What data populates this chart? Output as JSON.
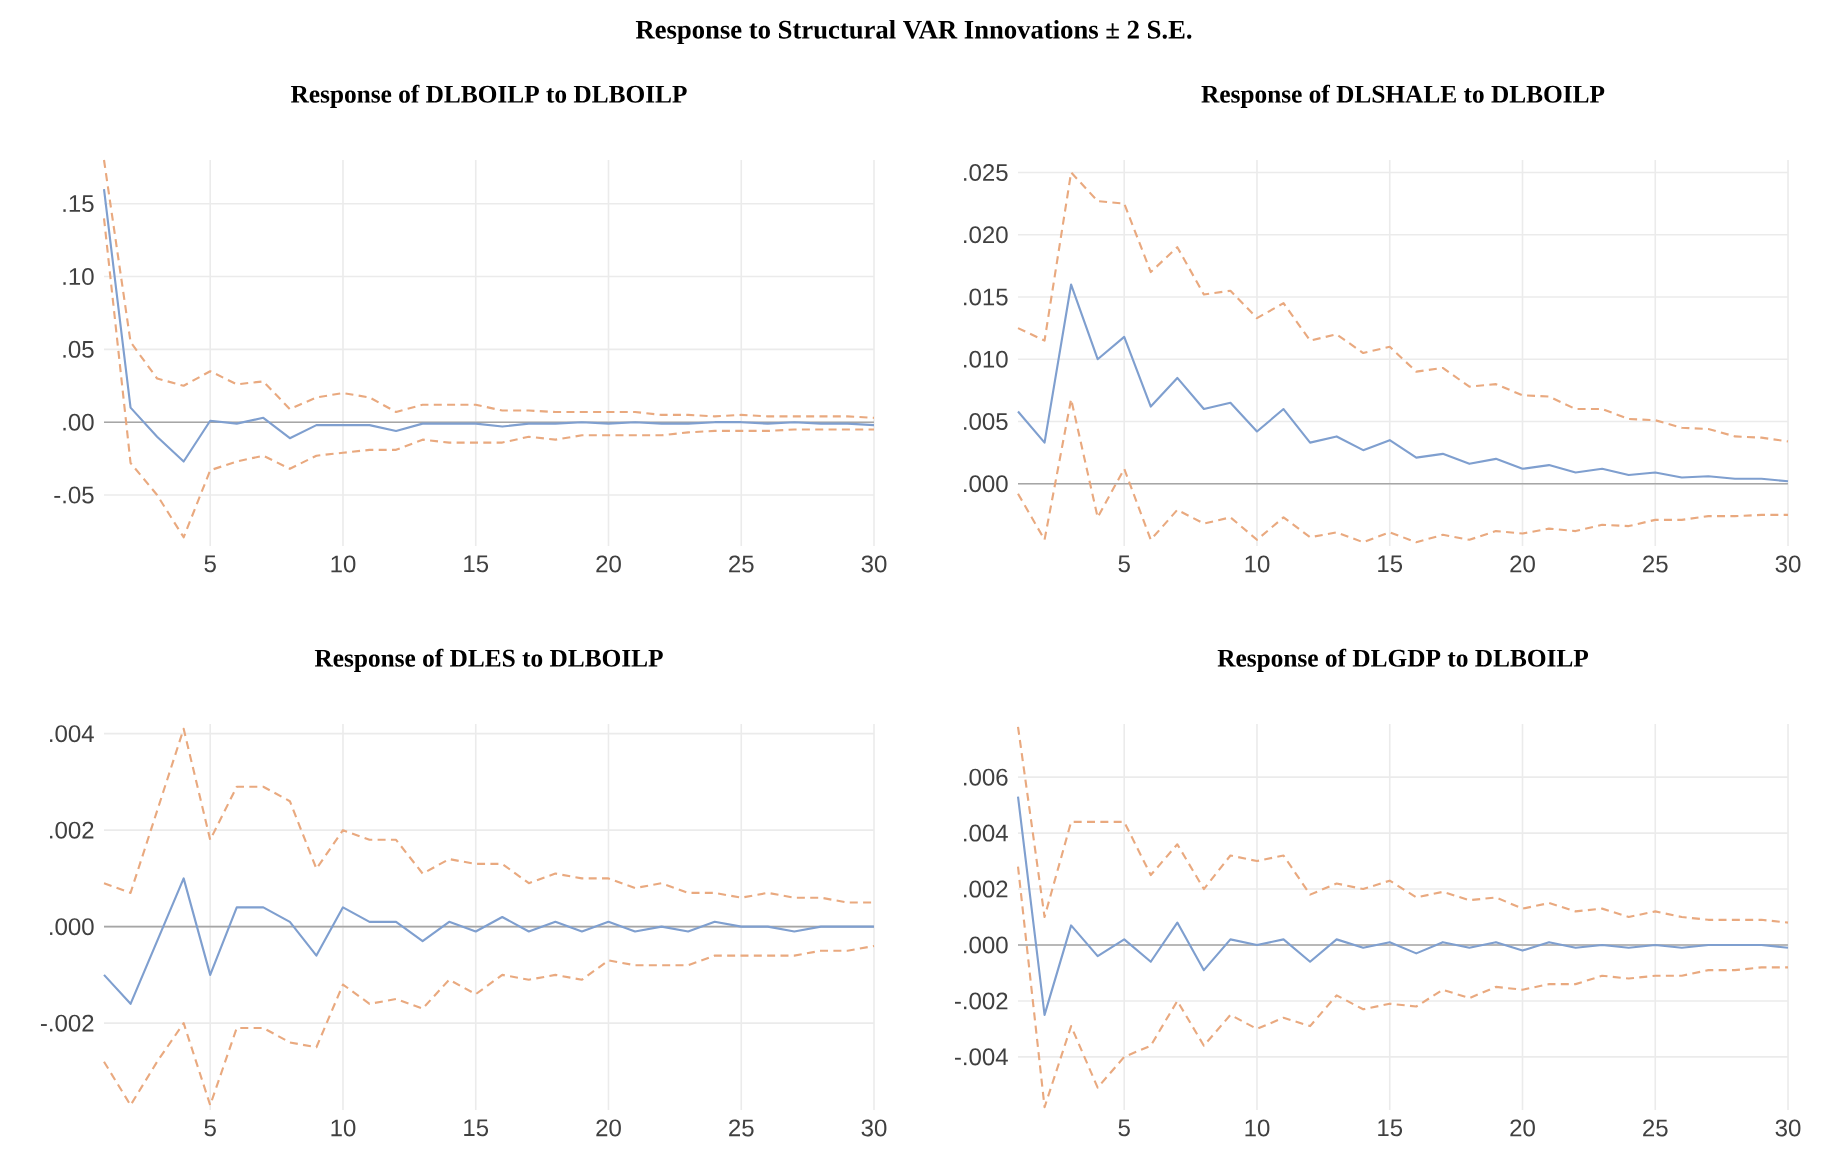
{
  "chart_data": [
    {
      "type": "line",
      "title": "Response of DLBOILP to DLBOILP",
      "annotations": [
        "Response to Structural VAR Innovations ± 2 S.E."
      ],
      "x": [
        1,
        2,
        3,
        4,
        5,
        6,
        7,
        8,
        9,
        10,
        11,
        12,
        13,
        14,
        15,
        16,
        17,
        18,
        19,
        20,
        21,
        22,
        23,
        24,
        25,
        26,
        27,
        28,
        29,
        30
      ],
      "xlim": [
        1,
        30
      ],
      "xticks": [
        5,
        10,
        15,
        20,
        25,
        30
      ],
      "ylim": [
        -0.085,
        0.18
      ],
      "yticks": [
        {
          "value": -0.05,
          "label": "-.05"
        },
        {
          "value": 0,
          "label": ".00"
        },
        {
          "value": 0.05,
          "label": ".05"
        },
        {
          "value": 0.1,
          "label": ".10"
        },
        {
          "value": 0.15,
          "label": ".15"
        }
      ],
      "grid": true,
      "ref_lines": [
        {
          "axis": "y",
          "value": 0,
          "color": "#a6a6a6"
        }
      ],
      "series": [
        {
          "color": "#7f9fcf",
          "line_style": "solid",
          "values": [
            0.16,
            0.01,
            -0.01,
            -0.027,
            0.001,
            -0.001,
            0.003,
            -0.011,
            -0.002,
            -0.002,
            -0.002,
            -0.006,
            -0.001,
            -0.001,
            -0.001,
            -0.003,
            -0.001,
            -0.001,
            0,
            -0.001,
            0,
            -0.001,
            -0.001,
            0,
            0,
            -0.001,
            0,
            -0.001,
            -0.001,
            -0.002
          ]
        },
        {
          "color": "#e9a97f",
          "line_style": "dashed",
          "values": [
            0.18,
            0.055,
            0.03,
            0.025,
            0.035,
            0.026,
            0.028,
            0.009,
            0.017,
            0.02,
            0.017,
            0.007,
            0.012,
            0.012,
            0.012,
            0.008,
            0.008,
            0.007,
            0.007,
            0.007,
            0.007,
            0.005,
            0.005,
            0.004,
            0.005,
            0.004,
            0.004,
            0.004,
            0.004,
            0.003
          ]
        },
        {
          "color": "#e9a97f",
          "line_style": "dashed",
          "values": [
            0.14,
            -0.028,
            -0.05,
            -0.079,
            -0.033,
            -0.027,
            -0.023,
            -0.032,
            -0.023,
            -0.021,
            -0.019,
            -0.019,
            -0.012,
            -0.014,
            -0.014,
            -0.014,
            -0.01,
            -0.012,
            -0.009,
            -0.009,
            -0.009,
            -0.009,
            -0.007,
            -0.006,
            -0.006,
            -0.006,
            -0.005,
            -0.005,
            -0.005,
            -0.005
          ]
        }
      ]
    },
    {
      "type": "line",
      "title": "Response of DLSHALE to DLBOILP",
      "x": [
        1,
        2,
        3,
        4,
        5,
        6,
        7,
        8,
        9,
        10,
        11,
        12,
        13,
        14,
        15,
        16,
        17,
        18,
        19,
        20,
        21,
        22,
        23,
        24,
        25,
        26,
        27,
        28,
        29,
        30
      ],
      "xlim": [
        1,
        30
      ],
      "xticks": [
        5,
        10,
        15,
        20,
        25,
        30
      ],
      "ylim": [
        -0.005,
        0.026
      ],
      "yticks": [
        {
          "value": 0,
          "label": ".000"
        },
        {
          "value": 0.005,
          "label": ".005"
        },
        {
          "value": 0.01,
          "label": ".010"
        },
        {
          "value": 0.015,
          "label": ".015"
        },
        {
          "value": 0.02,
          "label": ".020"
        },
        {
          "value": 0.025,
          "label": ".025"
        }
      ],
      "grid": true,
      "ref_lines": [
        {
          "axis": "y",
          "value": 0,
          "color": "#a6a6a6"
        }
      ],
      "series": [
        {
          "color": "#7f9fcf",
          "line_style": "solid",
          "values": [
            0.0058,
            0.0033,
            0.016,
            0.01,
            0.0118,
            0.0062,
            0.0085,
            0.006,
            0.0065,
            0.0042,
            0.006,
            0.0033,
            0.0038,
            0.0027,
            0.0035,
            0.0021,
            0.0024,
            0.0016,
            0.002,
            0.0012,
            0.0015,
            0.0009,
            0.0012,
            0.0007,
            0.0009,
            0.0005,
            0.0006,
            0.0004,
            0.0004,
            0.0002
          ]
        },
        {
          "color": "#e9a97f",
          "line_style": "dashed",
          "values": [
            0.0125,
            0.0115,
            0.025,
            0.0227,
            0.0225,
            0.017,
            0.019,
            0.0152,
            0.0155,
            0.0133,
            0.0145,
            0.0115,
            0.012,
            0.0105,
            0.011,
            0.009,
            0.0093,
            0.0078,
            0.008,
            0.0071,
            0.007,
            0.006,
            0.006,
            0.0052,
            0.0051,
            0.0045,
            0.0044,
            0.0038,
            0.0037,
            0.0034
          ]
        },
        {
          "color": "#e9a97f",
          "line_style": "dashed",
          "values": [
            -0.0008,
            -0.0045,
            0.0068,
            -0.0027,
            0.0012,
            -0.0045,
            -0.0021,
            -0.0032,
            -0.0027,
            -0.0045,
            -0.0027,
            -0.0043,
            -0.0039,
            -0.0047,
            -0.0039,
            -0.0047,
            -0.0041,
            -0.0045,
            -0.0038,
            -0.004,
            -0.0036,
            -0.0038,
            -0.0033,
            -0.0034,
            -0.0029,
            -0.0029,
            -0.0026,
            -0.0026,
            -0.0025,
            -0.0025
          ]
        }
      ]
    },
    {
      "type": "line",
      "title": "Response of DLES to DLBOILP",
      "x": [
        1,
        2,
        3,
        4,
        5,
        6,
        7,
        8,
        9,
        10,
        11,
        12,
        13,
        14,
        15,
        16,
        17,
        18,
        19,
        20,
        21,
        22,
        23,
        24,
        25,
        26,
        27,
        28,
        29,
        30
      ],
      "xlim": [
        1,
        30
      ],
      "xticks": [
        5,
        10,
        15,
        20,
        25,
        30
      ],
      "ylim": [
        -0.0038,
        0.0042
      ],
      "yticks": [
        {
          "value": -0.002,
          "label": "-.002"
        },
        {
          "value": 0,
          "label": ".000"
        },
        {
          "value": 0.002,
          "label": ".002"
        },
        {
          "value": 0.004,
          "label": ".004"
        }
      ],
      "grid": true,
      "ref_lines": [
        {
          "axis": "y",
          "value": 0,
          "color": "#a6a6a6"
        }
      ],
      "series": [
        {
          "color": "#7f9fcf",
          "line_style": "solid",
          "values": [
            -0.001,
            -0.0016,
            -0.0003,
            0.001,
            -0.001,
            0.0004,
            0.0004,
            0.0001,
            -0.0006,
            0.0004,
            0.0001,
            0.0001,
            -0.0003,
            0.0001,
            -0.0001,
            0.0002,
            -0.0001,
            0.0001,
            -0.0001,
            0.0001,
            -0.0001,
            0,
            -0.0001,
            0.0001,
            0,
            0,
            -0.0001,
            0,
            0,
            0
          ]
        },
        {
          "color": "#e9a97f",
          "line_style": "dashed",
          "values": [
            0.0009,
            0.0007,
            0.0024,
            0.0041,
            0.0018,
            0.0029,
            0.0029,
            0.0026,
            0.0012,
            0.002,
            0.0018,
            0.0018,
            0.0011,
            0.0014,
            0.0013,
            0.0013,
            0.0009,
            0.0011,
            0.001,
            0.001,
            0.0008,
            0.0009,
            0.0007,
            0.0007,
            0.0006,
            0.0007,
            0.0006,
            0.0006,
            0.0005,
            0.0005
          ]
        },
        {
          "color": "#e9a97f",
          "line_style": "dashed",
          "values": [
            -0.0028,
            -0.0037,
            -0.0028,
            -0.002,
            -0.0037,
            -0.0021,
            -0.0021,
            -0.0024,
            -0.0025,
            -0.0012,
            -0.0016,
            -0.0015,
            -0.0017,
            -0.0011,
            -0.0014,
            -0.001,
            -0.0011,
            -0.001,
            -0.0011,
            -0.0007,
            -0.0008,
            -0.0008,
            -0.0008,
            -0.0006,
            -0.0006,
            -0.0006,
            -0.0006,
            -0.0005,
            -0.0005,
            -0.0004
          ]
        }
      ]
    },
    {
      "type": "line",
      "title": "Response of DLGDP to DLBOILP",
      "x": [
        1,
        2,
        3,
        4,
        5,
        6,
        7,
        8,
        9,
        10,
        11,
        12,
        13,
        14,
        15,
        16,
        17,
        18,
        19,
        20,
        21,
        22,
        23,
        24,
        25,
        26,
        27,
        28,
        29,
        30
      ],
      "xlim": [
        1,
        30
      ],
      "xticks": [
        5,
        10,
        15,
        20,
        25,
        30
      ],
      "ylim": [
        -0.0059,
        0.0079
      ],
      "yticks": [
        {
          "value": -0.004,
          "label": "-.004"
        },
        {
          "value": -0.002,
          "label": "-.002"
        },
        {
          "value": 0,
          "label": ".000"
        },
        {
          "value": 0.002,
          "label": ".002"
        },
        {
          "value": 0.004,
          "label": ".004"
        },
        {
          "value": 0.006,
          "label": ".006"
        }
      ],
      "grid": true,
      "ref_lines": [
        {
          "axis": "y",
          "value": 0,
          "color": "#a6a6a6"
        }
      ],
      "series": [
        {
          "color": "#7f9fcf",
          "line_style": "solid",
          "values": [
            0.0053,
            -0.0025,
            0.0007,
            -0.0004,
            0.0002,
            -0.0006,
            0.0008,
            -0.0009,
            0.0002,
            0,
            0.0002,
            -0.0006,
            0.0002,
            -0.0001,
            0.0001,
            -0.0003,
            0.0001,
            -0.0001,
            0.0001,
            -0.0002,
            0.0001,
            -0.0001,
            0,
            -0.0001,
            0,
            -0.0001,
            0,
            0,
            0,
            -0.0001
          ]
        },
        {
          "color": "#e9a97f",
          "line_style": "dashed",
          "values": [
            0.0078,
            0.001,
            0.0044,
            0.0044,
            0.0044,
            0.0025,
            0.0036,
            0.002,
            0.0032,
            0.003,
            0.0032,
            0.0018,
            0.0022,
            0.002,
            0.0023,
            0.0017,
            0.0019,
            0.0016,
            0.0017,
            0.0013,
            0.0015,
            0.0012,
            0.0013,
            0.001,
            0.0012,
            0.001,
            0.0009,
            0.0009,
            0.0009,
            0.0008
          ]
        },
        {
          "color": "#e9a97f",
          "line_style": "dashed",
          "values": [
            0.0028,
            -0.0058,
            -0.0029,
            -0.0051,
            -0.004,
            -0.0036,
            -0.002,
            -0.0036,
            -0.0025,
            -0.003,
            -0.0026,
            -0.0029,
            -0.0018,
            -0.0023,
            -0.0021,
            -0.0022,
            -0.0016,
            -0.0019,
            -0.0015,
            -0.0016,
            -0.0014,
            -0.0014,
            -0.0011,
            -0.0012,
            -0.0011,
            -0.0011,
            -0.0009,
            -0.0009,
            -0.0008,
            -0.0008
          ]
        }
      ]
    }
  ]
}
